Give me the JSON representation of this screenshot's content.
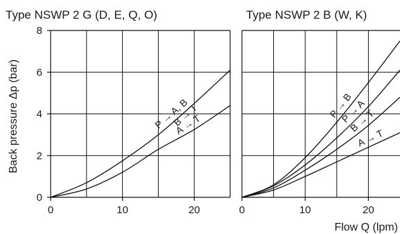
{
  "ylabel": "Back pressure  Δp (bar)",
  "xlabel": "Flow Q (lpm)",
  "chart_data": [
    {
      "type": "line",
      "title": "Type NSWP 2 G (D, E, Q, O)",
      "xlim": [
        0,
        25
      ],
      "ylim": [
        0,
        8
      ],
      "x_ticks": [
        0,
        10,
        20
      ],
      "y_ticks": [
        0,
        2,
        4,
        6,
        8
      ],
      "grid_x": [
        5,
        10,
        15,
        20
      ],
      "grid_y": [
        2,
        4,
        6
      ],
      "series": [
        {
          "name": "P → A, B / B → T",
          "x": [
            0,
            5,
            10,
            15,
            20,
            25
          ],
          "y": [
            0,
            0.7,
            1.75,
            3.0,
            4.5,
            6.1
          ],
          "label_lines": [
            "P → A, B",
            "B → T"
          ],
          "label_at": 18.2
        },
        {
          "name": "A → T",
          "x": [
            0,
            5,
            10,
            15,
            20,
            25
          ],
          "y": [
            0,
            0.4,
            1.2,
            2.3,
            3.25,
            4.4
          ],
          "label_lines": [
            "A → T"
          ],
          "label_at": 20.5
        }
      ]
    },
    {
      "type": "line",
      "title": "Type NSWP 2 B (W, K)",
      "xlim": [
        0,
        25
      ],
      "ylim": [
        0,
        8
      ],
      "x_ticks": [
        0,
        10,
        20
      ],
      "y_ticks": [],
      "grid_x": [
        5,
        10,
        15,
        20
      ],
      "grid_y": [
        2,
        4,
        6
      ],
      "series": [
        {
          "name": "P → B",
          "x": [
            0,
            5,
            10,
            15,
            20,
            25
          ],
          "y": [
            0,
            0.6,
            1.9,
            3.6,
            5.5,
            7.5
          ],
          "label_lines": [
            "P → B"
          ],
          "label_at": 17.2
        },
        {
          "name": "P → A",
          "x": [
            0,
            5,
            10,
            15,
            20,
            25
          ],
          "y": [
            0,
            0.55,
            1.55,
            2.85,
            4.35,
            6.1
          ],
          "label_lines": [
            "P → A"
          ],
          "label_at": 19.2
        },
        {
          "name": "B → T",
          "x": [
            0,
            5,
            10,
            15,
            20,
            25
          ],
          "y": [
            0,
            0.45,
            1.3,
            2.3,
            3.45,
            4.8
          ],
          "label_lines": [
            "B → T"
          ],
          "label_at": 20.6
        },
        {
          "name": "A → T",
          "x": [
            0,
            5,
            10,
            15,
            20,
            25
          ],
          "y": [
            0,
            0.35,
            1.0,
            1.7,
            2.4,
            3.1
          ],
          "label_lines": [
            "A → T"
          ],
          "label_at": 21.8
        }
      ]
    }
  ]
}
